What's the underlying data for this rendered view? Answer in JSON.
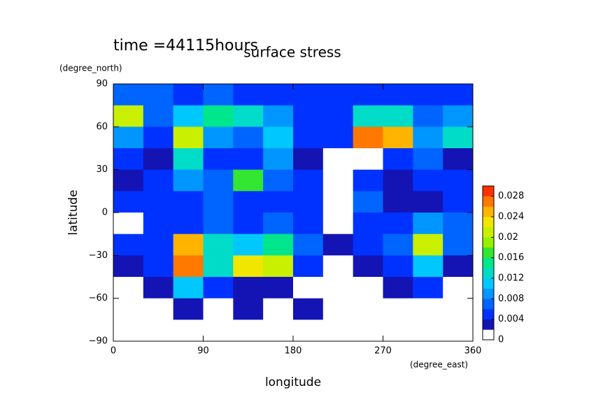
{
  "chart_data": {
    "type": "heatmap",
    "title": "surface stress",
    "subtitle": "time =44115hours",
    "x_label": "longitude",
    "x_unit": "(degree_east)",
    "y_label": "latitude",
    "y_unit": "(degree_north)",
    "xlim": [
      0,
      360
    ],
    "xticks": [
      0,
      90,
      180,
      270,
      360
    ],
    "ylim": [
      -90,
      90
    ],
    "yticks": [
      {
        "value": -90,
        "label": "−90"
      },
      {
        "value": -60,
        "label": "−60"
      },
      {
        "value": -30,
        "label": "−30"
      },
      0,
      30,
      60,
      90
    ],
    "x": [
      15,
      45,
      75,
      105,
      135,
      165,
      195,
      225,
      255,
      285,
      315,
      345
    ],
    "y": [
      82.5,
      67.5,
      52.5,
      37.5,
      22.5,
      7.5,
      -7.5,
      -22.5,
      -37.5,
      -52.5,
      -67.5,
      -82.5
    ],
    "z": [
      [
        0.006,
        0.006,
        0.005,
        0.006,
        0.005,
        0.005,
        0.004,
        0.004,
        0.005,
        0.005,
        0.005,
        0.005
      ],
      [
        0.02,
        0.006,
        0.01,
        0.014,
        0.012,
        0.008,
        0.005,
        0.005,
        0.012,
        0.012,
        0.006,
        0.008
      ],
      [
        0.008,
        0.004,
        0.02,
        0.008,
        0.006,
        0.01,
        0.004,
        0.004,
        0.026,
        0.024,
        0.008,
        0.012
      ],
      [
        0.004,
        0.003,
        0.012,
        0.005,
        0.005,
        0.008,
        0.003,
        0.001,
        0.001,
        0.004,
        0.006,
        0.003
      ],
      [
        0.003,
        0.004,
        0.008,
        0.006,
        0.016,
        0.006,
        0.004,
        0.001,
        0.004,
        0.003,
        0.004,
        0.004
      ],
      [
        0.004,
        0.005,
        0.004,
        0.006,
        0.005,
        0.004,
        0.005,
        0.001,
        0.006,
        0.003,
        0.003,
        0.004
      ],
      [
        0.001,
        0.004,
        0.004,
        0.006,
        0.005,
        0.006,
        0.005,
        0.001,
        0.004,
        0.004,
        0.008,
        0.006
      ],
      [
        0.004,
        0.005,
        0.024,
        0.012,
        0.01,
        0.014,
        0.006,
        0.003,
        0.004,
        0.006,
        0.02,
        0.006
      ],
      [
        0.003,
        0.005,
        0.026,
        0.012,
        0.022,
        0.02,
        0.004,
        0.001,
        0.003,
        0.004,
        0.01,
        0.003
      ],
      [
        0.001,
        0.002,
        0.01,
        0.004,
        0.003,
        0.003,
        0.001,
        0.001,
        0.001,
        0.003,
        0.004,
        0.001
      ],
      [
        0.001,
        0.001,
        0.002,
        0.001,
        0.003,
        0.001,
        0.002,
        0.001,
        0.001,
        0.001,
        0.001,
        0.001
      ],
      [
        0.001,
        0.001,
        0.001,
        0.001,
        0.001,
        0.001,
        0.001,
        0.001,
        0.001,
        0.001,
        0.001,
        0.001
      ]
    ],
    "levels": [
      0,
      0.002,
      0.004,
      0.006,
      0.008,
      0.01,
      0.012,
      0.014,
      0.016,
      0.018,
      0.02,
      0.022,
      0.024,
      0.026,
      0.028,
      0.03
    ],
    "colors": [
      "#ffffff",
      "#1414b4",
      "#0032ff",
      "#0064ff",
      "#0096ff",
      "#00c8ff",
      "#00dcc8",
      "#00e68c",
      "#32e632",
      "#96f000",
      "#c8f000",
      "#f0e600",
      "#ffb400",
      "#ff7800",
      "#ff3200"
    ],
    "clim": [
      0,
      0.03
    ],
    "cticks": [
      0,
      0.004,
      0.008,
      0.012,
      0.016,
      0.02,
      0.024,
      0.028
    ]
  }
}
